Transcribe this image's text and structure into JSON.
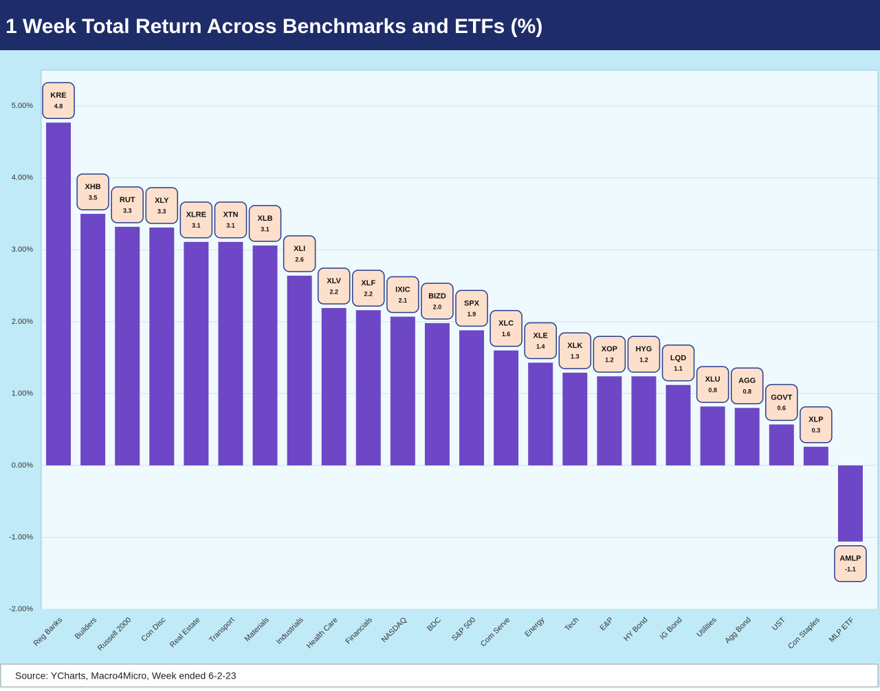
{
  "chart_data": {
    "type": "bar",
    "title": "1 Week Total Return Across Benchmarks and ETFs (%)",
    "source": "Source: YCharts, Macro4Micro, Week ended 6-2-23",
    "categories": [
      "Reg Banks",
      "Builders",
      "Russell 2000",
      "Con Disc",
      "Real Estate",
      "Transport",
      "Materials",
      "Industrials",
      "Health Care",
      "Financials",
      "NASDAQ",
      "BDC",
      "S&P 500",
      "Com Serve",
      "Energy",
      "Tech",
      "E&P",
      "HY Bond",
      "IG Bond",
      "Utilities",
      "Agg Bond",
      "UST",
      "Con Staples",
      "MLP ETF"
    ],
    "tickers": [
      "KRE",
      "XHB",
      "RUT",
      "XLY",
      "XLRE",
      "XTN",
      "XLB",
      "XLI",
      "XLV",
      "XLF",
      "IXIC",
      "BIZD",
      "SPX",
      "XLC",
      "XLE",
      "XLK",
      "XOP",
      "HYG",
      "LQD",
      "XLU",
      "AGG",
      "GOVT",
      "XLP",
      "AMLP"
    ],
    "values": [
      4.77,
      3.5,
      3.32,
      3.31,
      3.11,
      3.11,
      3.06,
      2.64,
      2.19,
      2.16,
      2.07,
      1.98,
      1.88,
      1.6,
      1.43,
      1.29,
      1.24,
      1.24,
      1.12,
      0.82,
      0.8,
      0.57,
      0.26,
      -1.06
    ],
    "value_labels": [
      "4.8",
      "3.5",
      "3.3",
      "3.3",
      "3.1",
      "3.1",
      "3.1",
      "2.6",
      "2.2",
      "2.2",
      "2.1",
      "2.0",
      "1.9",
      "1.6",
      "1.4",
      "1.3",
      "1.2",
      "1.2",
      "1.1",
      "0.8",
      "0.8",
      "0.6",
      "0.3",
      "-1.1"
    ],
    "color": "#6e47c6",
    "ylim": [
      -2,
      5.5
    ],
    "yticks": [
      {
        "value": -2,
        "label": "-2.00%"
      },
      {
        "value": -1,
        "label": "-1.00%"
      },
      {
        "value": 0,
        "label": "0.00%"
      },
      {
        "value": 1,
        "label": "1.00%"
      },
      {
        "value": 2,
        "label": "2.00%"
      },
      {
        "value": 3,
        "label": "3.00%"
      },
      {
        "value": 4,
        "label": "4.00%"
      },
      {
        "value": 5,
        "label": "5.00%"
      }
    ],
    "grid": true
  }
}
